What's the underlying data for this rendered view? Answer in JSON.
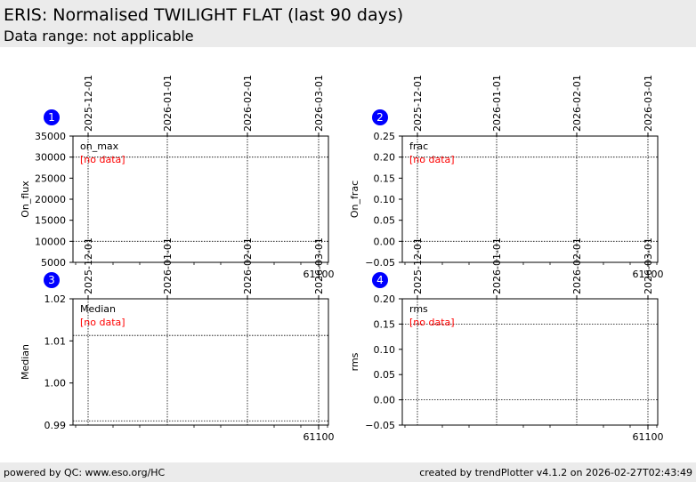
{
  "header": {
    "title": "ERIS: Normalised TWILIGHT FLAT (last 90 days)",
    "subtitle": "Data range: not applicable"
  },
  "footer": {
    "left": "powered by QC: www.eso.org/HC",
    "right": "created by trendPlotter v4.1.2 on 2026-02-27T02:43:49"
  },
  "colors": {
    "header_bg": "#ebebeb",
    "badge": "#0000ff",
    "no_data": "#ff0000"
  },
  "chart_data": [
    {
      "type": "scatter",
      "number": "1",
      "ylabel": "On_flux",
      "legend": "on_max",
      "no_data_text": "[no data]",
      "ylim": [
        5000,
        35000
      ],
      "yticks": [
        5000,
        10000,
        15000,
        20000,
        25000,
        30000,
        35000
      ],
      "ytick_labels": [
        "5000",
        "10000",
        "15000",
        "20000",
        "25000",
        "30000",
        "35000"
      ],
      "hlines": [
        10000,
        30000
      ],
      "date_ticks": [
        "2025-12-01",
        "2026-01-01",
        "2026-02-01",
        "2026-03-01"
      ],
      "mjd_tick_label": "61100",
      "series": []
    },
    {
      "type": "scatter",
      "number": "2",
      "ylabel": "On_frac",
      "legend": "frac",
      "no_data_text": "[no data]",
      "ylim": [
        -0.05,
        0.25
      ],
      "yticks": [
        -0.05,
        0.0,
        0.05,
        0.1,
        0.15,
        0.2,
        0.25
      ],
      "ytick_labels": [
        "−0.05",
        "0.00",
        "0.05",
        "0.10",
        "0.15",
        "0.20",
        "0.25"
      ],
      "hlines": [
        0.0,
        0.2
      ],
      "date_ticks": [
        "2025-12-01",
        "2026-01-01",
        "2026-02-01",
        "2026-03-01"
      ],
      "mjd_tick_label": "61100",
      "series": []
    },
    {
      "type": "scatter",
      "number": "3",
      "ylabel": "Median",
      "legend": "Median",
      "no_data_text": "[no data]",
      "ylim": [
        0.99,
        1.02
      ],
      "yticks": [
        0.99,
        1.0,
        1.01,
        1.02
      ],
      "ytick_labels": [
        "0.99",
        "1.00",
        "1.01",
        "1.02"
      ],
      "hlines": [
        0.991,
        1.0113
      ],
      "date_ticks": [
        "2025-12-01",
        "2026-01-01",
        "2026-02-01",
        "2026-03-01"
      ],
      "mjd_tick_label": "61100",
      "series": []
    },
    {
      "type": "scatter",
      "number": "4",
      "ylabel": "rms",
      "legend": "rms",
      "no_data_text": "[no data]",
      "ylim": [
        -0.05,
        0.2
      ],
      "yticks": [
        -0.05,
        0.0,
        0.05,
        0.1,
        0.15,
        0.2
      ],
      "ytick_labels": [
        "−0.05",
        "0.00",
        "0.05",
        "0.10",
        "0.15",
        "0.20"
      ],
      "hlines": [
        0.0,
        0.15
      ],
      "date_ticks": [
        "2025-12-01",
        "2026-01-01",
        "2026-02-01",
        "2026-03-01"
      ],
      "mjd_tick_label": "61100",
      "series": []
    }
  ]
}
